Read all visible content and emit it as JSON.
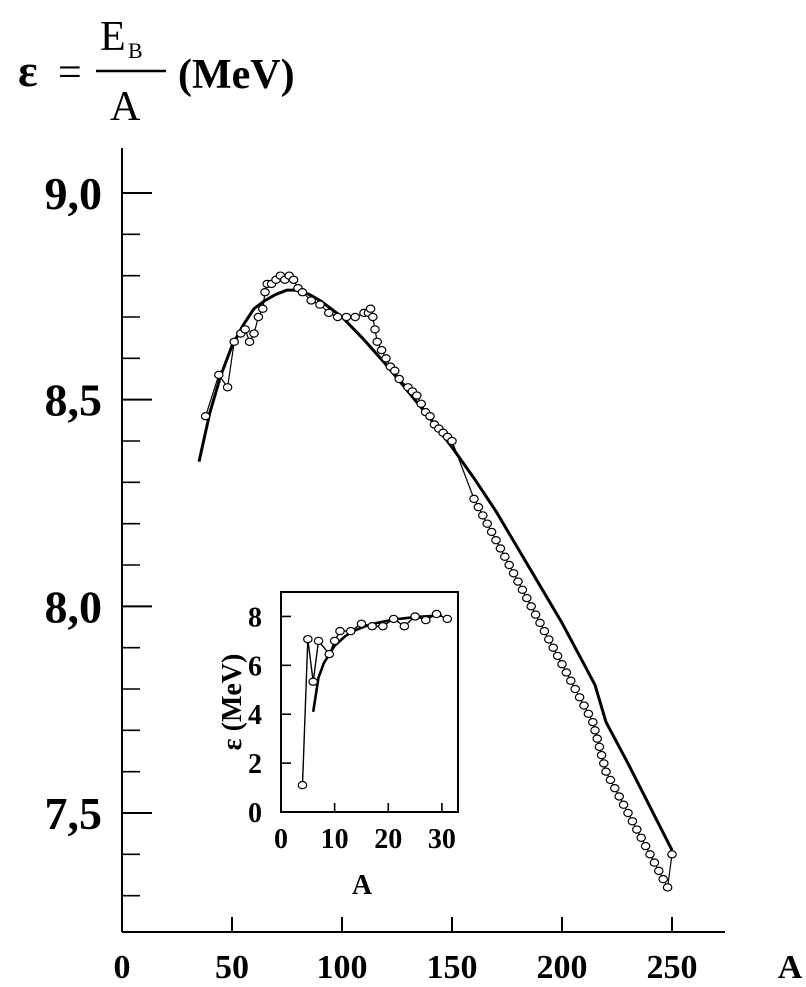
{
  "chart_data": [
    {
      "type": "line",
      "title_parts": {
        "symbol": "ε",
        "equals": "=",
        "numerator_main": "E",
        "numerator_sub": "B",
        "denominator": "A",
        "unit": "(MeV)"
      },
      "xlabel": "A",
      "ylabel": "ε = E_B / A (MeV)",
      "xlim": [
        0,
        275
      ],
      "ylim": [
        7.2,
        9.15
      ],
      "x_ticks": [
        0,
        50,
        100,
        150,
        200,
        250
      ],
      "x_tick_labels": [
        "0",
        "50",
        "100",
        "150",
        "200",
        "250"
      ],
      "y_ticks": [
        7.5,
        8.0,
        8.5,
        9.0
      ],
      "y_tick_labels": [
        "7,5",
        "8,0",
        "8,5",
        "9,0"
      ],
      "y_minor_ticks": [
        7.3,
        7.4,
        7.6,
        7.7,
        7.8,
        7.9,
        8.1,
        8.2,
        8.3,
        8.4,
        8.6,
        8.7,
        8.8,
        8.9
      ],
      "series": [
        {
          "kind": "smooth-fit",
          "x": [
            35,
            40,
            45,
            50,
            55,
            60,
            65,
            70,
            75,
            80,
            85,
            90,
            95,
            100,
            110,
            120,
            130,
            140,
            150,
            160,
            170,
            180,
            190,
            200,
            210,
            215,
            220,
            230,
            240,
            250
          ],
          "y": [
            8.35,
            8.47,
            8.56,
            8.63,
            8.68,
            8.72,
            8.74,
            8.755,
            8.765,
            8.765,
            8.755,
            8.74,
            8.72,
            8.7,
            8.645,
            8.585,
            8.52,
            8.455,
            8.385,
            8.31,
            8.23,
            8.14,
            8.05,
            7.96,
            7.86,
            7.81,
            7.72,
            7.62,
            7.515,
            7.41
          ]
        },
        {
          "kind": "measured-points",
          "x": [
            38,
            44,
            48,
            51,
            54,
            56,
            58,
            60,
            62,
            64,
            65,
            66,
            68,
            70,
            72,
            74,
            76,
            78,
            80,
            82,
            86,
            90,
            94,
            98,
            102,
            106,
            110,
            112,
            113,
            114,
            115,
            116,
            118,
            120,
            122,
            124,
            126,
            130,
            132,
            134,
            136,
            138,
            140,
            142,
            144,
            146,
            148,
            150,
            160,
            162,
            164,
            166,
            168,
            170,
            172,
            174,
            176,
            178,
            180,
            182,
            184,
            186,
            188,
            190,
            192,
            194,
            196,
            198,
            200,
            202,
            204,
            206,
            208,
            210,
            212,
            214,
            215,
            216,
            217,
            218,
            219,
            220,
            222,
            224,
            226,
            228,
            230,
            232,
            234,
            236,
            238,
            240,
            242,
            244,
            246,
            248,
            250
          ],
          "y": [
            8.46,
            8.56,
            8.53,
            8.64,
            8.66,
            8.67,
            8.64,
            8.66,
            8.7,
            8.72,
            8.76,
            8.78,
            8.78,
            8.79,
            8.8,
            8.79,
            8.8,
            8.79,
            8.77,
            8.76,
            8.74,
            8.73,
            8.71,
            8.7,
            8.7,
            8.7,
            8.71,
            8.71,
            8.72,
            8.7,
            8.67,
            8.64,
            8.62,
            8.6,
            8.58,
            8.57,
            8.55,
            8.53,
            8.52,
            8.51,
            8.49,
            8.47,
            8.46,
            8.44,
            8.43,
            8.42,
            8.41,
            8.4,
            8.26,
            8.24,
            8.22,
            8.2,
            8.18,
            8.16,
            8.14,
            8.12,
            8.1,
            8.08,
            8.06,
            8.04,
            8.02,
            8.0,
            7.98,
            7.96,
            7.94,
            7.92,
            7.9,
            7.88,
            7.86,
            7.84,
            7.82,
            7.8,
            7.78,
            7.76,
            7.74,
            7.72,
            7.7,
            7.68,
            7.66,
            7.64,
            7.62,
            7.6,
            7.58,
            7.56,
            7.54,
            7.52,
            7.5,
            7.48,
            7.46,
            7.44,
            7.42,
            7.4,
            7.38,
            7.36,
            7.34,
            7.32,
            7.4
          ]
        }
      ]
    },
    {
      "type": "line",
      "role": "inset",
      "xlabel": "A",
      "ylabel": "ε (MeV)",
      "xlim": [
        0,
        33
      ],
      "ylim": [
        0,
        9
      ],
      "x_ticks": [
        0,
        10,
        20,
        30
      ],
      "x_tick_labels": [
        "0",
        "10",
        "20",
        "30"
      ],
      "y_ticks": [
        0,
        2,
        4,
        6,
        8
      ],
      "y_tick_labels": [
        "0",
        "2",
        "4",
        "6",
        "8"
      ],
      "series": [
        {
          "kind": "smooth-fit",
          "x": [
            6,
            7,
            8,
            10,
            12,
            14,
            16,
            18,
            20,
            22,
            24,
            26,
            28,
            30
          ],
          "y": [
            4.1,
            5.5,
            6.1,
            6.8,
            7.2,
            7.45,
            7.62,
            7.74,
            7.83,
            7.9,
            7.95,
            7.99,
            8.02,
            8.04
          ]
        },
        {
          "kind": "measured-points",
          "x": [
            4,
            5,
            6,
            7,
            9,
            10,
            11,
            13,
            15,
            17,
            19,
            21,
            23,
            25,
            27,
            29,
            31
          ],
          "y": [
            1.1,
            7.07,
            5.33,
            7.0,
            6.46,
            7.0,
            7.4,
            7.4,
            7.7,
            7.6,
            7.6,
            7.9,
            7.6,
            8.0,
            7.85,
            8.1,
            7.9
          ]
        }
      ]
    }
  ]
}
